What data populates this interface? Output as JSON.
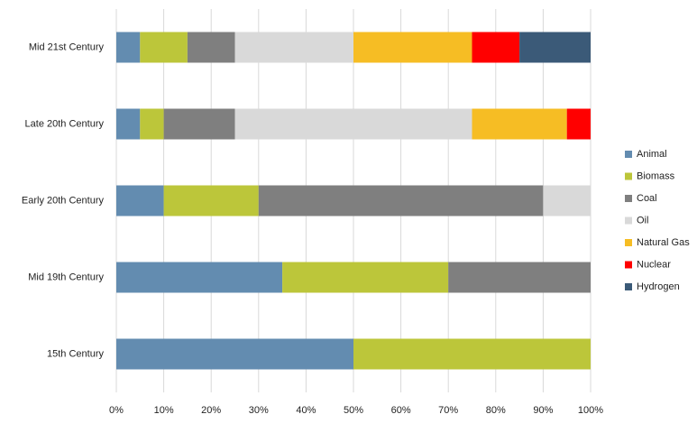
{
  "chart_data": {
    "type": "bar",
    "orientation": "horizontal",
    "stacked": true,
    "categories": [
      "Mid 21st Century",
      "Late 20th Century",
      "Early 20th Century",
      "Mid 19th Century",
      "15th Century"
    ],
    "series": [
      {
        "name": "Animal",
        "color": "#638cb0",
        "values": [
          5,
          5,
          10,
          35,
          50
        ]
      },
      {
        "name": "Biomass",
        "color": "#bcc63a",
        "values": [
          10,
          5,
          20,
          35,
          50
        ]
      },
      {
        "name": "Coal",
        "color": "#7f7f7f",
        "values": [
          10,
          15,
          60,
          30,
          0
        ]
      },
      {
        "name": "Oil",
        "color": "#d9d9d9",
        "values": [
          25,
          50,
          10,
          0,
          0
        ]
      },
      {
        "name": "Natural Gas",
        "color": "#f6bd24",
        "values": [
          25,
          20,
          0,
          0,
          0
        ]
      },
      {
        "name": "Nuclear",
        "color": "#ff0000",
        "values": [
          10,
          5,
          0,
          0,
          0
        ]
      },
      {
        "name": "Hydrogen",
        "color": "#3b5a78",
        "values": [
          15,
          0,
          0,
          0,
          0
        ]
      }
    ],
    "xlim": [
      0,
      100
    ],
    "xticks": [
      {
        "value": 0,
        "label": "0%"
      },
      {
        "value": 10,
        "label": "10%"
      },
      {
        "value": 20,
        "label": "20%"
      },
      {
        "value": 30,
        "label": "30%"
      },
      {
        "value": 40,
        "label": "40%"
      },
      {
        "value": 50,
        "label": "50%"
      },
      {
        "value": 60,
        "label": "60%"
      },
      {
        "value": 70,
        "label": "70%"
      },
      {
        "value": 80,
        "label": "80%"
      },
      {
        "value": 90,
        "label": "90%"
      },
      {
        "value": 100,
        "label": "100%"
      }
    ],
    "grid": true,
    "legend": "right"
  }
}
